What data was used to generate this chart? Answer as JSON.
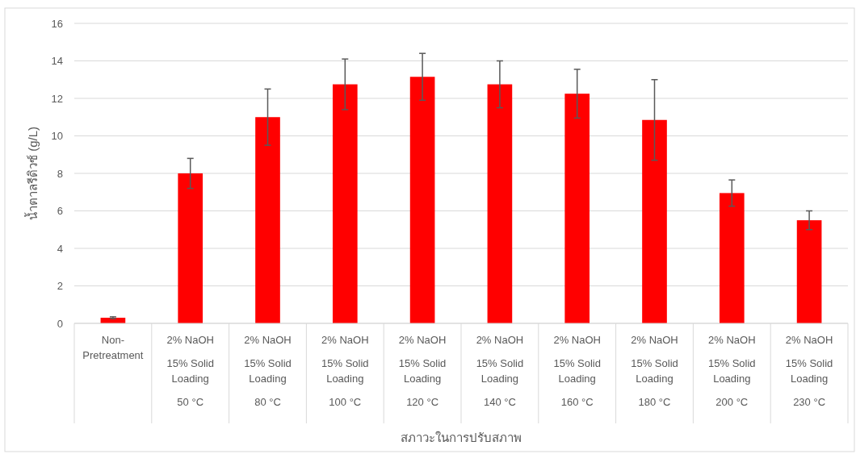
{
  "chart_data": {
    "type": "bar",
    "xlabel": "สภาวะในการปรับสภาพ",
    "ylabel": "น้ำตาลรีดิวซ์ (g/L)",
    "categories": [
      "Non-\nPretreatment",
      "2% NaOH\n15% Solid\nLoading\n50 °C",
      "2% NaOH\n15% Solid\nLoading\n80 °C",
      "2% NaOH\n15% Solid\nLoading\n100  °C",
      "2% NaOH\n15% Solid\nLoading\n120 °C",
      "2% NaOH\n15% Solid\nLoading\n140 °C",
      "2% NaOH\n15% Solid\nLoading\n160 °C",
      "2% NaOH\n15% Solid\nLoading\n180 °C",
      "2% NaOH\n15% Solid\nLoading\n200 °C",
      "2% NaOH\n15% Solid\nLoading\n230 °C"
    ],
    "values": [
      0.3,
      8.0,
      11.0,
      12.75,
      13.15,
      12.75,
      12.25,
      10.85,
      6.95,
      5.5
    ],
    "errors": [
      0.05,
      0.8,
      1.5,
      1.35,
      1.25,
      1.25,
      1.3,
      2.15,
      0.7,
      0.5
    ],
    "color": "#ff0000",
    "ylim": [
      0,
      16
    ],
    "yticks": [
      0,
      2,
      4,
      6,
      8,
      10,
      12,
      14,
      16
    ],
    "grid": "y"
  }
}
